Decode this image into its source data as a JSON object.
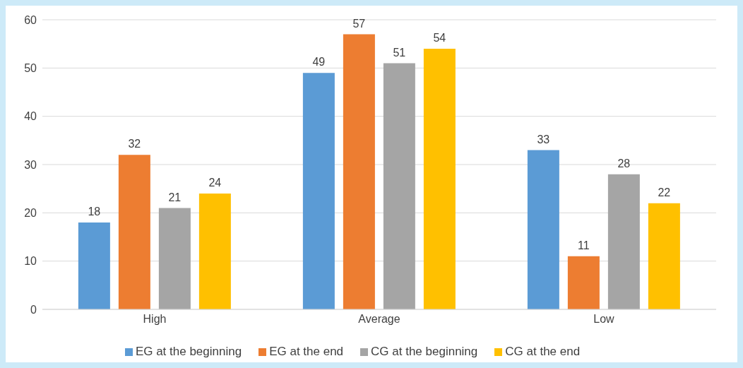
{
  "chart_data": {
    "type": "bar",
    "categories": [
      "High",
      "Average",
      "Low"
    ],
    "series": [
      {
        "name": "EG at the beginning",
        "color": "#5b9bd5",
        "values": [
          18,
          49,
          33
        ]
      },
      {
        "name": "EG at the end",
        "color": "#ed7d31",
        "values": [
          32,
          57,
          11
        ]
      },
      {
        "name": "CG at the beginning",
        "color": "#a5a5a5",
        "values": [
          21,
          51,
          28
        ]
      },
      {
        "name": "CG at the end",
        "color": "#ffc000",
        "values": [
          24,
          54,
          22
        ]
      }
    ],
    "ylim": [
      0,
      60
    ],
    "yticks": [
      0,
      10,
      20,
      30,
      40,
      50,
      60
    ],
    "grid": "y",
    "legend": "bottom",
    "data_labels": true
  }
}
